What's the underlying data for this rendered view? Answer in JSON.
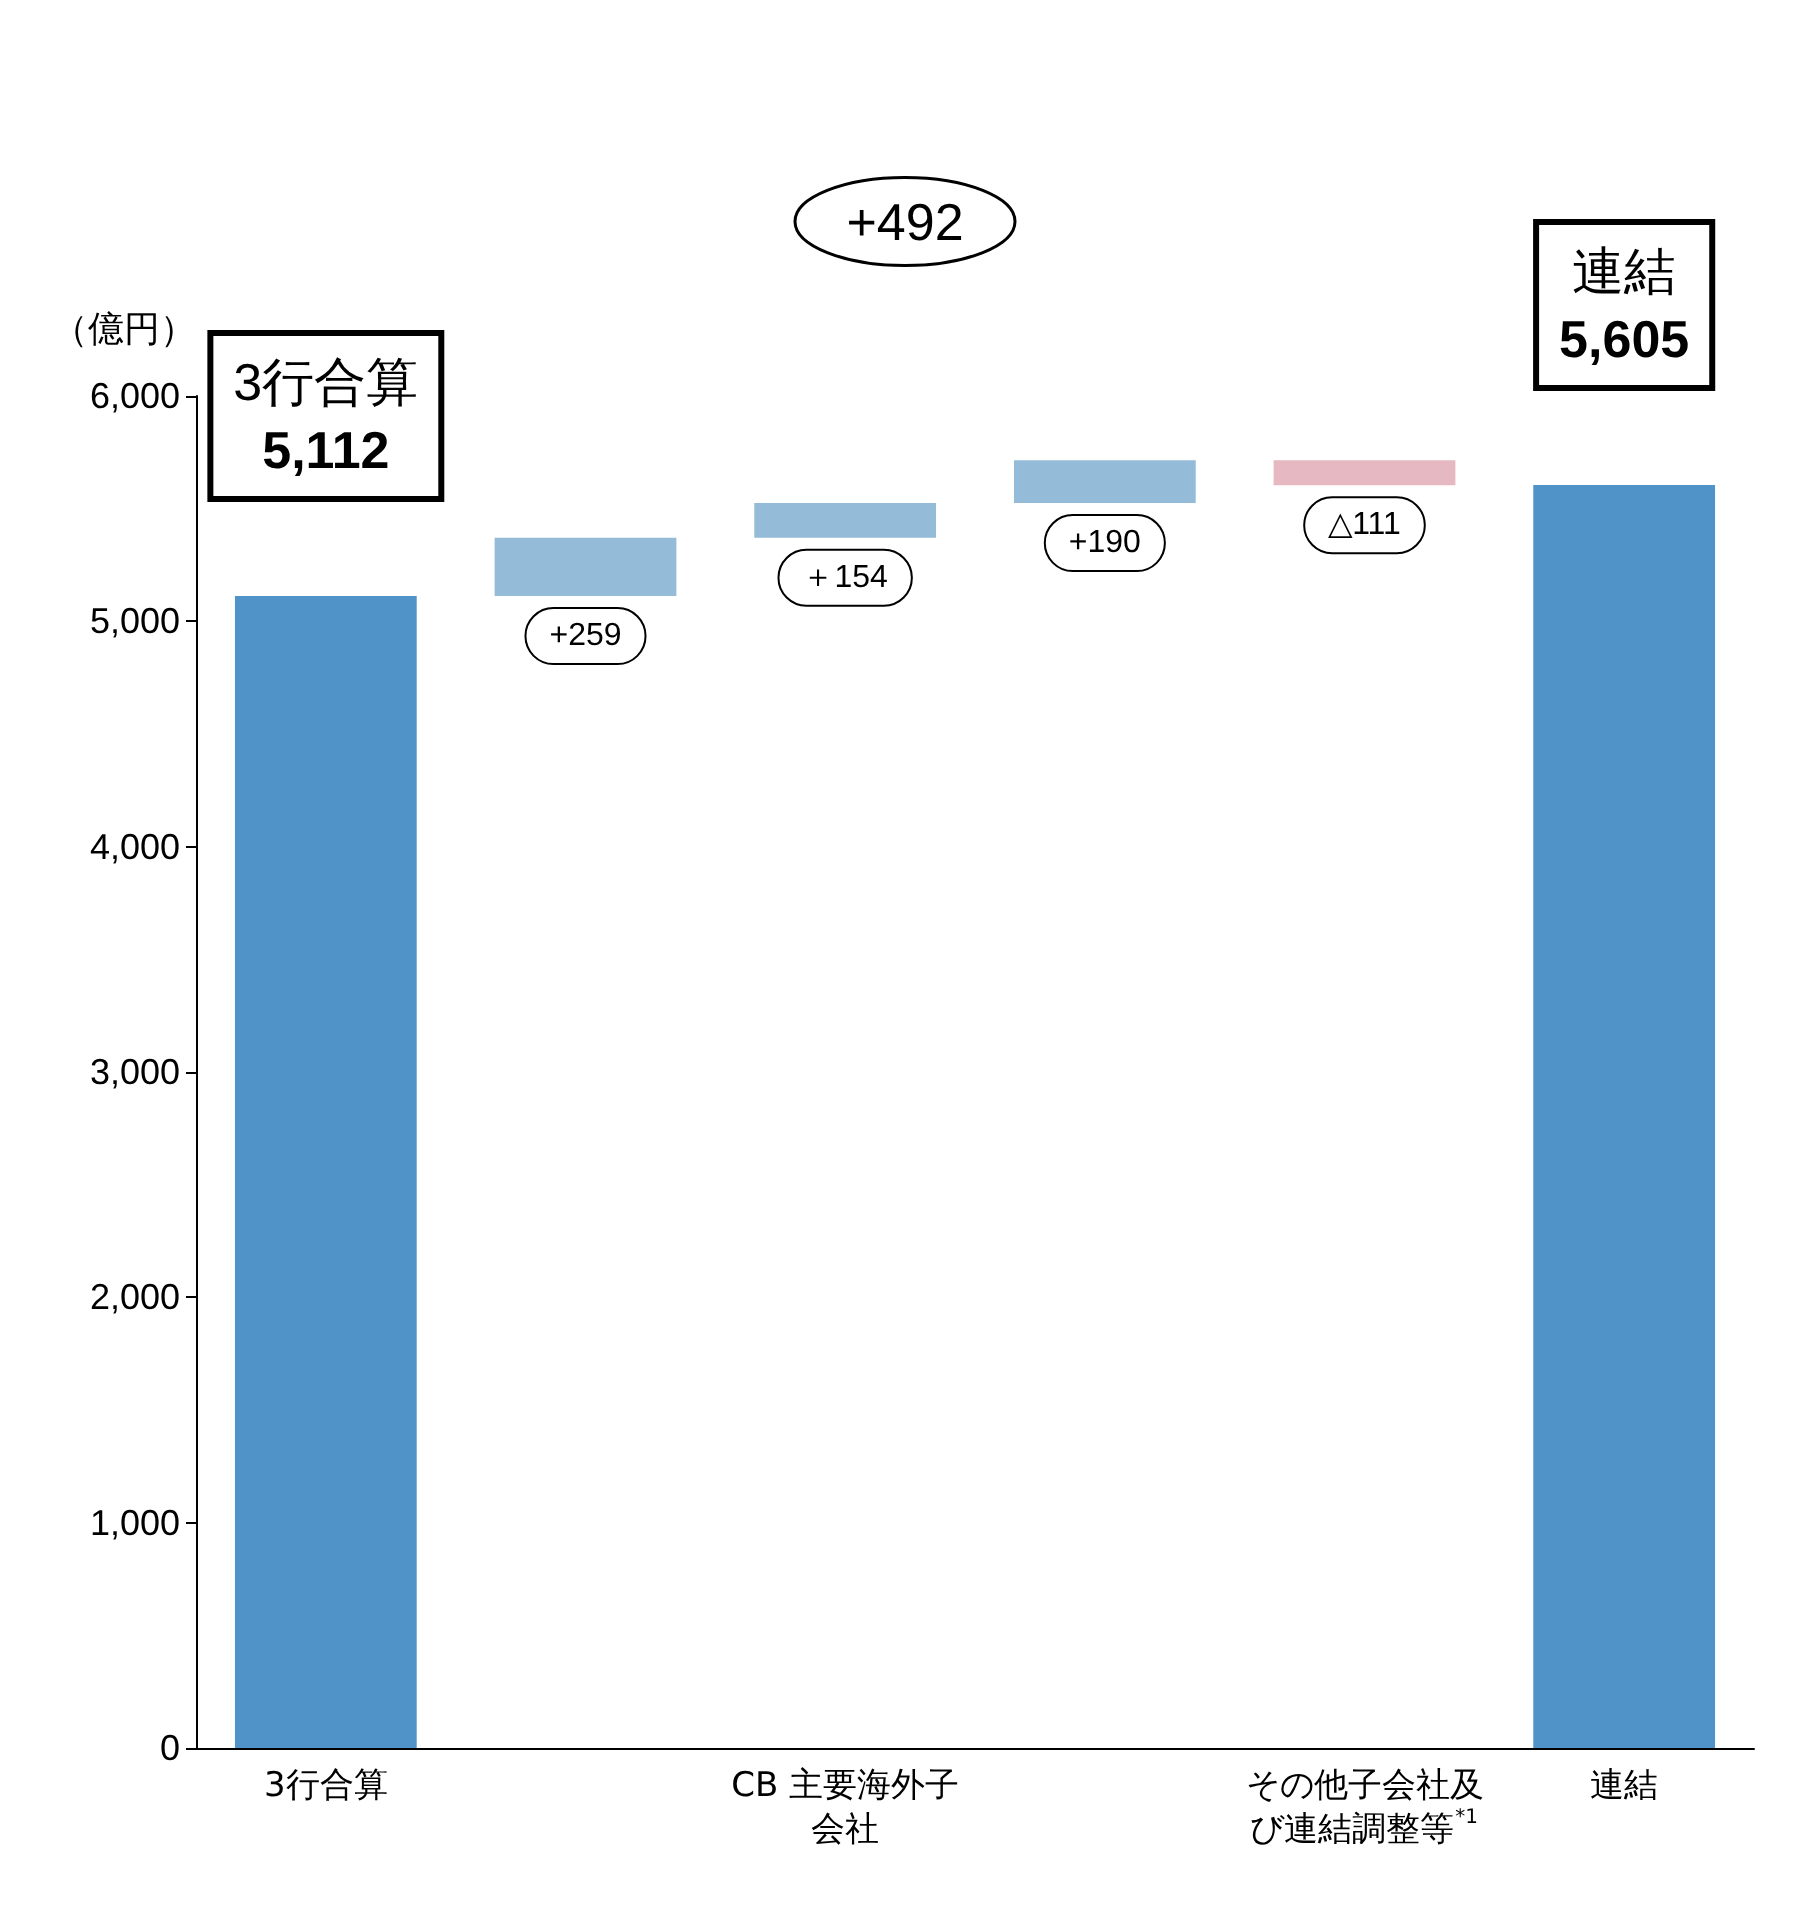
{
  "chart_data": {
    "type": "bar",
    "ylabel": "（億円）",
    "categories": [
      "3行合算",
      null,
      "CB 主要海外子会社",
      null,
      "その他子会社及び連結調整等$^{*1}$",
      "連結"
    ],
    "values": [
      5112,
      259,
      154,
      190,
      -111,
      5605
    ],
    "base": [
      0,
      5112,
      5371,
      5525,
      5715,
      0
    ],
    "colors": [
      "#4f93c8",
      "#94bcd9",
      "#94bcd9",
      "#94bcd9",
      "#e6b8c1",
      "#4f93c8"
    ],
    "value_labels": [
      "5,112",
      "+259",
      "＋154",
      "+190",
      "△111",
      "5,605"
    ],
    "annotations": [
      "+492"
    ],
    "ylim": [
      0,
      6000
    ],
    "yticks": [
      0,
      {
        "value": 1000,
        "label": "1,000"
      },
      {
        "value": 2000,
        "label": "2,000"
      },
      {
        "value": 3000,
        "label": "3,000"
      },
      {
        "value": 4000,
        "label": "4,000"
      },
      {
        "value": 5000,
        "label": "5,000"
      },
      {
        "value": 6000,
        "label": "6,000"
      }
    ],
    "grid": false
  }
}
